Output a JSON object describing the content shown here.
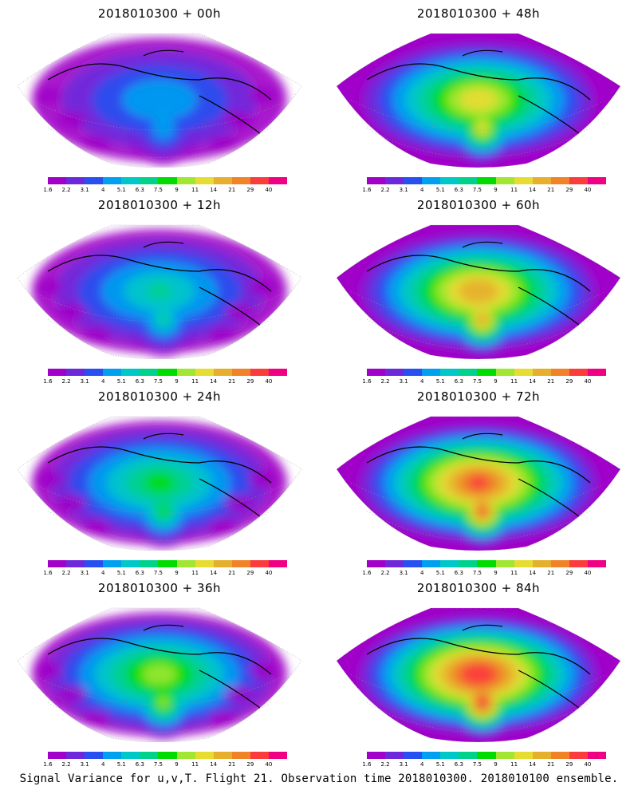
{
  "panels": [
    {
      "title": "2018010300 + 00h",
      "stage": 0
    },
    {
      "title": "2018010300 + 48h",
      "stage": 4
    },
    {
      "title": "2018010300 + 12h",
      "stage": 1
    },
    {
      "title": "2018010300 + 60h",
      "stage": 5
    },
    {
      "title": "2018010300 + 24h",
      "stage": 2
    },
    {
      "title": "2018010300 + 72h",
      "stage": 6
    },
    {
      "title": "2018010300 + 36h",
      "stage": 3
    },
    {
      "title": "2018010300 + 84h",
      "stage": 7
    }
  ],
  "colorbar": {
    "ticks": [
      "1.6",
      "2.2",
      "3.1",
      "4",
      "5.1",
      "6.3",
      "7.5",
      "9",
      "11",
      "14",
      "21",
      "29",
      "40"
    ],
    "colors": [
      "#a000c8",
      "#6e28dc",
      "#2850f0",
      "#00a0f0",
      "#00c8c8",
      "#00d28c",
      "#00dc00",
      "#a0e632",
      "#e6dc32",
      "#e6af2d",
      "#f08228",
      "#fa3c3c",
      "#f00082"
    ]
  },
  "footer": "Signal Variance for u,v,T. Flight 21. Observation time 2018010300. 2018010100 ensemble."
}
